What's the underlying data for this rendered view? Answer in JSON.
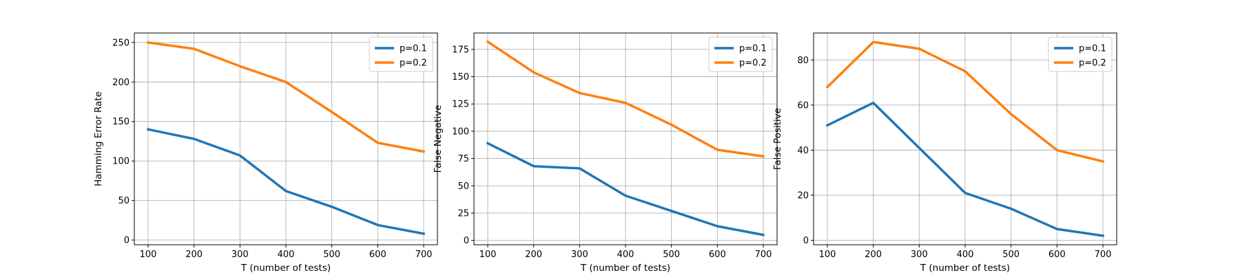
{
  "chart_data": [
    {
      "type": "line",
      "title": "",
      "xlabel": "T (number of tests)",
      "ylabel": "Hamming Error Rate",
      "x": [
        100,
        200,
        300,
        400,
        500,
        600,
        700
      ],
      "xticks": [
        100,
        200,
        300,
        400,
        500,
        600,
        700
      ],
      "xlim": [
        70,
        730
      ],
      "yticks": [
        0,
        50,
        100,
        150,
        200,
        250
      ],
      "ylim": [
        -6,
        262
      ],
      "grid": true,
      "legend_position": "upper right",
      "series": [
        {
          "name": "p=0.1",
          "color": "#1f77b4",
          "values": [
            140,
            128,
            107,
            62,
            42,
            19,
            8
          ]
        },
        {
          "name": "p=0.2",
          "color": "#ff7f0e",
          "values": [
            250,
            242,
            220,
            200,
            162,
            123,
            112
          ]
        }
      ]
    },
    {
      "type": "line",
      "title": "",
      "xlabel": "T (number of tests)",
      "ylabel": "False Negative",
      "x": [
        100,
        200,
        300,
        400,
        500,
        600,
        700
      ],
      "xticks": [
        100,
        200,
        300,
        400,
        500,
        600,
        700
      ],
      "xlim": [
        70,
        730
      ],
      "yticks": [
        0,
        25,
        50,
        75,
        100,
        125,
        150,
        175
      ],
      "ylim": [
        -4,
        190
      ],
      "grid": true,
      "legend_position": "upper right",
      "series": [
        {
          "name": "p=0.1",
          "color": "#1f77b4",
          "values": [
            89,
            68,
            66,
            41,
            27,
            13,
            5
          ]
        },
        {
          "name": "p=0.2",
          "color": "#ff7f0e",
          "values": [
            182,
            154,
            135,
            126,
            106,
            83,
            77
          ]
        }
      ]
    },
    {
      "type": "line",
      "title": "",
      "xlabel": "T (number of tests)",
      "ylabel": "False Positive",
      "x": [
        100,
        200,
        300,
        400,
        500,
        600,
        700
      ],
      "xticks": [
        100,
        200,
        300,
        400,
        500,
        600,
        700
      ],
      "xlim": [
        70,
        730
      ],
      "yticks": [
        0,
        20,
        40,
        60,
        80
      ],
      "ylim": [
        -2,
        92
      ],
      "grid": true,
      "legend_position": "upper right",
      "series": [
        {
          "name": "p=0.1",
          "color": "#1f77b4",
          "values": [
            51,
            61,
            41,
            21,
            14,
            5,
            2
          ]
        },
        {
          "name": "p=0.2",
          "color": "#ff7f0e",
          "values": [
            68,
            88,
            85,
            75,
            56,
            40,
            35
          ]
        }
      ]
    }
  ]
}
